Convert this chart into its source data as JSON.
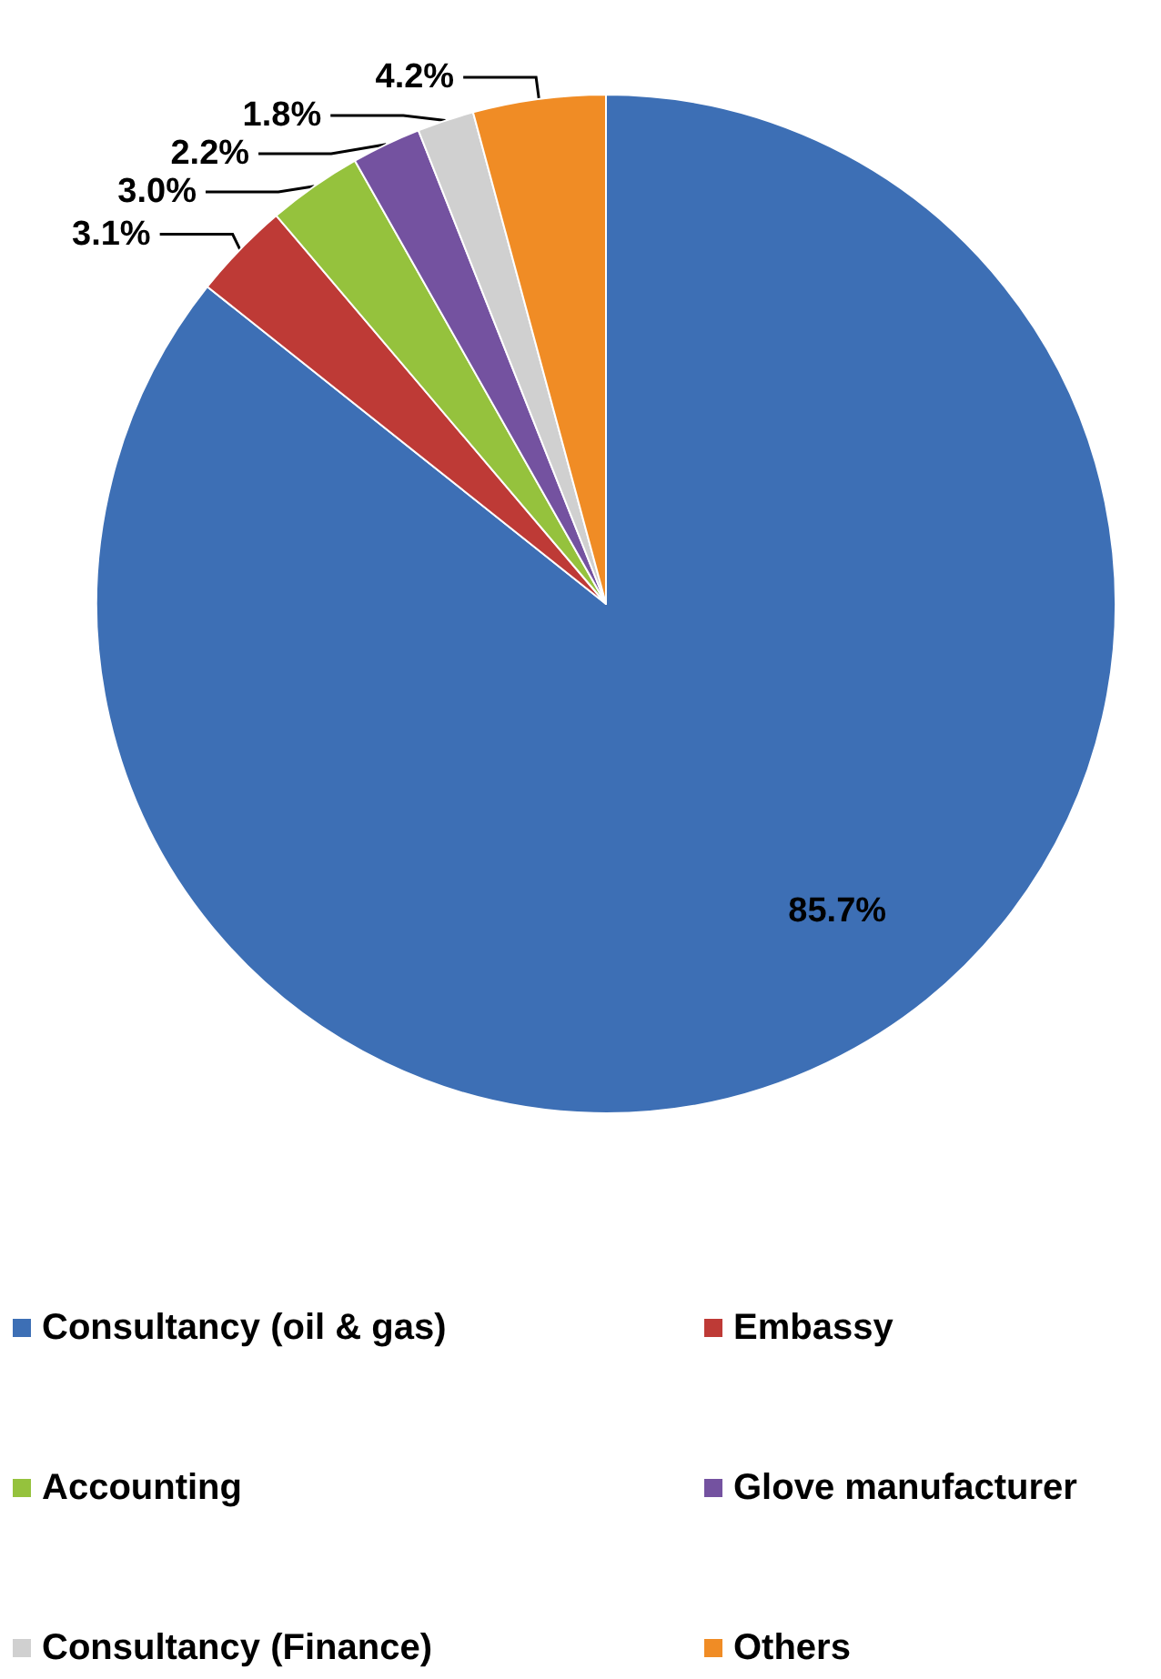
{
  "chart_data": {
    "type": "pie",
    "categories": [
      "Consultancy (oil & gas)",
      "Embassy",
      "Accounting",
      "Glove manufacturer",
      "Consultancy (Finance)",
      "Others"
    ],
    "values": [
      85.7,
      3.1,
      3.0,
      2.2,
      1.8,
      4.2
    ],
    "value_labels": [
      "85.7%",
      "3.1%",
      "3.0%",
      "2.2%",
      "1.8%",
      "4.2%"
    ],
    "colors": [
      "#3d6fb5",
      "#be3a36",
      "#95c23d",
      "#7452a0",
      "#d0d0d0",
      "#f08c25"
    ],
    "legend": "bottom"
  }
}
